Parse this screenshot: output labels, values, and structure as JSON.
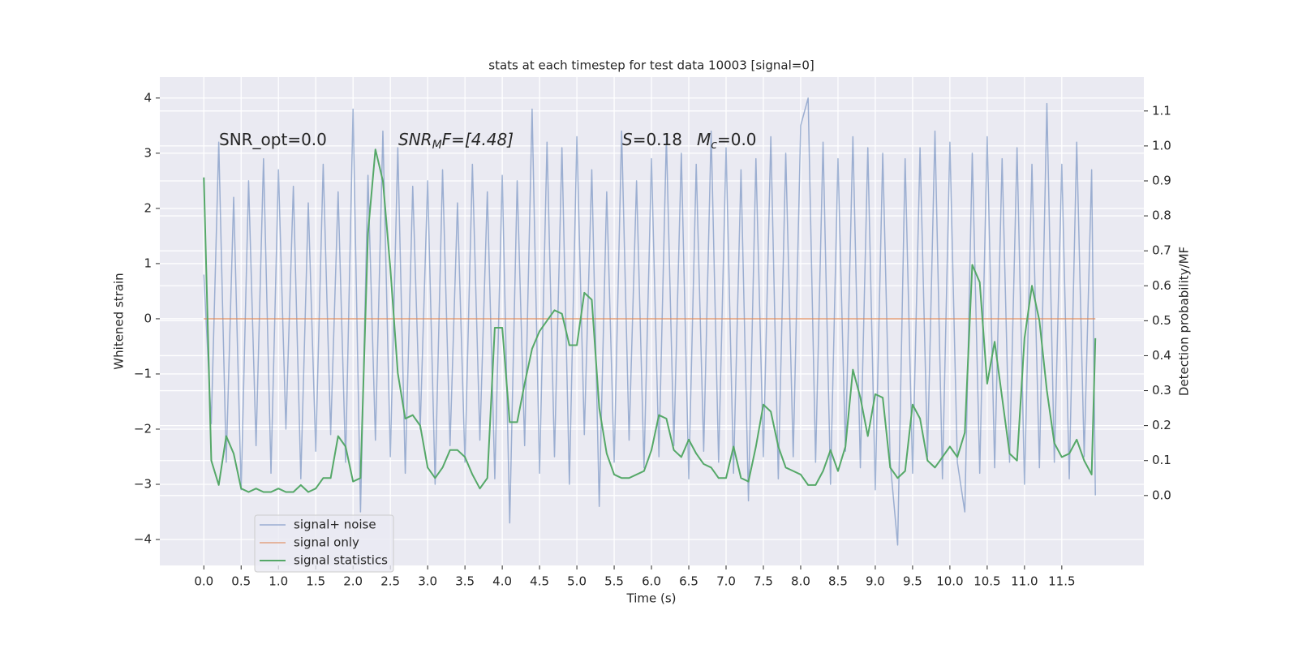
{
  "chart_data": {
    "type": "line",
    "title": "stats at each timestep for test data 10003 [signal=0]",
    "x_label": "Time (s)",
    "y_label": "Whitened strain",
    "y2_label": "Detection probability/MF",
    "annotations": [
      [
        "SNR_opt=0.0"
      ],
      [
        "SNR",
        "M",
        "F=[4.48]"
      ],
      [
        "S",
        "=0.18"
      ],
      [
        "M",
        "c",
        "=0.0"
      ]
    ],
    "grid": true,
    "legend": "lower left",
    "xlim": [
      -0.59,
      12.6
    ],
    "ylim": [
      -4.47,
      4.38
    ],
    "y2lim": [
      -0.2,
      1.197
    ],
    "xticks": [
      {
        "value": 0,
        "label": "0.0"
      },
      0.5,
      {
        "value": 1,
        "label": "1.0"
      },
      1.5,
      {
        "value": 2,
        "label": "2.0"
      },
      2.5,
      {
        "value": 3,
        "label": "3.0"
      },
      3.5,
      {
        "value": 4,
        "label": "4.0"
      },
      4.5,
      {
        "value": 5,
        "label": "5.0"
      },
      5.5,
      {
        "value": 6,
        "label": "6.0"
      },
      6.5,
      {
        "value": 7,
        "label": "7.0"
      },
      7.5,
      {
        "value": 8,
        "label": "8.0"
      },
      8.5,
      {
        "value": 9,
        "label": "9.0"
      },
      9.5,
      {
        "value": 10,
        "label": "10.0"
      },
      10.5,
      {
        "value": 11,
        "label": "11.0"
      },
      11.5
    ],
    "yticks": [
      {
        "value": -4,
        "label": "−4"
      },
      {
        "value": -3,
        "label": "−3"
      },
      {
        "value": -2,
        "label": "−2"
      },
      {
        "value": -1,
        "label": "−1"
      },
      0,
      1,
      2,
      3,
      4
    ],
    "y2ticks": [
      {
        "value": 0,
        "label": "0.0"
      },
      0.1,
      0.2,
      0.3,
      0.4,
      0.5,
      0.6,
      0.7,
      0.8,
      0.9,
      {
        "value": 1,
        "label": "1.0"
      },
      1.1
    ],
    "x": [
      0,
      0.1,
      0.2,
      0.3,
      0.4,
      0.5,
      0.6,
      0.7,
      0.8,
      0.9,
      1,
      1.1,
      1.2,
      1.3,
      1.4,
      1.5,
      1.6,
      1.7,
      1.8,
      1.9,
      2,
      2.1,
      2.2,
      2.3,
      2.4,
      2.5,
      2.6,
      2.7,
      2.8,
      2.9,
      3,
      3.1,
      3.2,
      3.3,
      3.4,
      3.5,
      3.6,
      3.7,
      3.8,
      3.9,
      4,
      4.1,
      4.2,
      4.3,
      4.4,
      4.5,
      4.6,
      4.7,
      4.8,
      4.9,
      5,
      5.1,
      5.2,
      5.3,
      5.4,
      5.5,
      5.6,
      5.7,
      5.8,
      5.9,
      6,
      6.1,
      6.2,
      6.3,
      6.4,
      6.5,
      6.6,
      6.7,
      6.8,
      6.9,
      7,
      7.1,
      7.2,
      7.3,
      7.4,
      7.5,
      7.6,
      7.7,
      7.8,
      7.9,
      8,
      8.1,
      8.2,
      8.3,
      8.4,
      8.5,
      8.6,
      8.7,
      8.8,
      8.9,
      9,
      9.1,
      9.2,
      9.3,
      9.4,
      9.5,
      9.6,
      9.7,
      9.8,
      9.9,
      10,
      10.1,
      10.2,
      10.3,
      10.4,
      10.5,
      10.6,
      10.7,
      10.8,
      10.9,
      11,
      11.1,
      11.2,
      11.3,
      11.4,
      11.5,
      11.6,
      11.7,
      11.8,
      11.9,
      11.95
    ],
    "series": [
      {
        "name": "signal+ noise",
        "color": "#4c72b0",
        "values": [
          0.8,
          -1.9,
          3.2,
          -2.6,
          2.2,
          -3.1,
          2.5,
          -2.3,
          2.9,
          -2.8,
          2.7,
          -2.0,
          2.4,
          -2.9,
          2.1,
          -2.4,
          2.8,
          -2.1,
          2.3,
          -2.6,
          3.8,
          -3.5,
          2.6,
          -2.2,
          3.4,
          -2.5,
          3.1,
          -2.8,
          2.4,
          -2.0,
          2.5,
          -3.0,
          2.7,
          -2.3,
          2.1,
          -2.6,
          2.8,
          -2.2,
          2.3,
          -2.9,
          2.6,
          -3.7,
          2.5,
          -2.3,
          3.8,
          -2.8,
          3.2,
          -2.5,
          3.1,
          -3.0,
          3.3,
          -2.1,
          2.7,
          -3.4,
          2.3,
          -2.6,
          3.4,
          -2.2,
          2.5,
          -2.7,
          2.9,
          -2.5,
          3.3,
          -2.3,
          3.0,
          -2.9,
          2.8,
          -2.4,
          3.4,
          -2.6,
          3.1,
          -2.8,
          2.7,
          -3.3,
          2.9,
          -2.5,
          3.3,
          -2.9,
          3.0,
          -2.5,
          3.5,
          4.0,
          -2.6,
          3.2,
          -3.0,
          2.9,
          -2.4,
          3.3,
          -2.7,
          3.1,
          -3.1,
          3.0,
          -2.6,
          -4.1,
          2.9,
          -2.8,
          3.1,
          -2.5,
          3.4,
          -2.9,
          3.2,
          -2.6,
          -3.5,
          3.0,
          -2.8,
          3.3,
          -2.7,
          2.9,
          -2.6,
          3.1,
          -3.0,
          2.8,
          -2.7,
          3.9,
          -2.6,
          2.8,
          -2.9,
          3.2,
          -2.5,
          2.7,
          -3.2
        ]
      },
      {
        "name": "signal only",
        "color": "#dd8452",
        "values": [
          0,
          0,
          0,
          0,
          0,
          0,
          0,
          0,
          0,
          0,
          0,
          0,
          0,
          0,
          0,
          0,
          0,
          0,
          0,
          0,
          0,
          0,
          0,
          0,
          0,
          0,
          0,
          0,
          0,
          0,
          0,
          0,
          0,
          0,
          0,
          0,
          0,
          0,
          0,
          0,
          0,
          0,
          0,
          0,
          0,
          0,
          0,
          0,
          0,
          0,
          0,
          0,
          0,
          0,
          0,
          0,
          0,
          0,
          0,
          0,
          0,
          0,
          0,
          0,
          0,
          0,
          0,
          0,
          0,
          0,
          0,
          0,
          0,
          0,
          0,
          0,
          0,
          0,
          0,
          0,
          0,
          0,
          0,
          0,
          0,
          0,
          0,
          0,
          0,
          0,
          0,
          0,
          0,
          0,
          0,
          0,
          0,
          0,
          0,
          0,
          0,
          0,
          0,
          0,
          0,
          0,
          0,
          0,
          0,
          0,
          0,
          0,
          0,
          0,
          0,
          0,
          0,
          0,
          0,
          0,
          0
        ]
      },
      {
        "name": "signal statistics",
        "color": "#55a868",
        "axis": "y2",
        "values": [
          0.91,
          0.1,
          0.03,
          0.17,
          0.12,
          0.02,
          0.01,
          0.02,
          0.01,
          0.01,
          0.02,
          0.01,
          0.01,
          0.03,
          0.01,
          0.02,
          0.05,
          0.05,
          0.17,
          0.14,
          0.04,
          0.05,
          0.75,
          0.99,
          0.9,
          0.65,
          0.35,
          0.22,
          0.23,
          0.2,
          0.08,
          0.05,
          0.08,
          0.13,
          0.13,
          0.11,
          0.06,
          0.02,
          0.05,
          0.48,
          0.48,
          0.21,
          0.21,
          0.32,
          0.42,
          0.47,
          0.5,
          0.53,
          0.52,
          0.43,
          0.43,
          0.58,
          0.56,
          0.25,
          0.12,
          0.06,
          0.05,
          0.05,
          0.06,
          0.07,
          0.13,
          0.23,
          0.22,
          0.13,
          0.11,
          0.16,
          0.12,
          0.09,
          0.08,
          0.05,
          0.05,
          0.14,
          0.05,
          0.04,
          0.14,
          0.26,
          0.24,
          0.14,
          0.08,
          0.07,
          0.06,
          0.03,
          0.03,
          0.07,
          0.13,
          0.07,
          0.14,
          0.36,
          0.28,
          0.17,
          0.29,
          0.28,
          0.08,
          0.05,
          0.07,
          0.26,
          0.22,
          0.1,
          0.08,
          0.11,
          0.14,
          0.11,
          0.18,
          0.66,
          0.61,
          0.32,
          0.44,
          0.28,
          0.12,
          0.1,
          0.45,
          0.6,
          0.5,
          0.3,
          0.15,
          0.11,
          0.12,
          0.16,
          0.1,
          0.06,
          0.45
        ]
      }
    ]
  }
}
